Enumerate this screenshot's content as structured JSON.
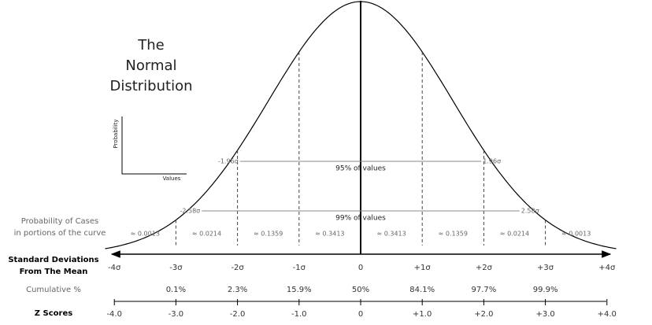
{
  "title": [
    "The",
    "Normal",
    "Distribution"
  ],
  "inset": {
    "y_label": "Probability",
    "x_label": "Values"
  },
  "intervals": [
    {
      "label": "95% of values",
      "left": "-1.96σ",
      "right": "1.96σ"
    },
    {
      "label": "99% of values",
      "left": "-2.58σ",
      "right": "2.58σ"
    }
  ],
  "rows": {
    "probability": {
      "label": [
        "Probability of Cases",
        "in portions of the curve"
      ],
      "values": [
        "≈ 0.0013",
        "≈ 0.0214",
        "≈ 0.1359",
        "≈ 0.3413",
        "≈ 0.3413",
        "≈ 0.1359",
        "≈ 0.0214",
        "≈ 0.0013"
      ]
    },
    "sd": {
      "label": [
        "Standard Deviations",
        "From The Mean"
      ],
      "values": [
        "-4σ",
        "-3σ",
        "-2σ",
        "-1σ",
        "0",
        "+1σ",
        "+2σ",
        "+3σ",
        "+4σ"
      ]
    },
    "cumulative": {
      "label": "Cumulative %",
      "values": [
        "0.1%",
        "2.3%",
        "15.9%",
        "50%",
        "84.1%",
        "97.7%",
        "99.9%"
      ]
    },
    "z": {
      "label": "Z Scores",
      "values": [
        "-4.0",
        "-3.0",
        "-2.0",
        "-1.0",
        "0",
        "+1.0",
        "+2.0",
        "+3.0",
        "+4.0"
      ]
    }
  }
}
